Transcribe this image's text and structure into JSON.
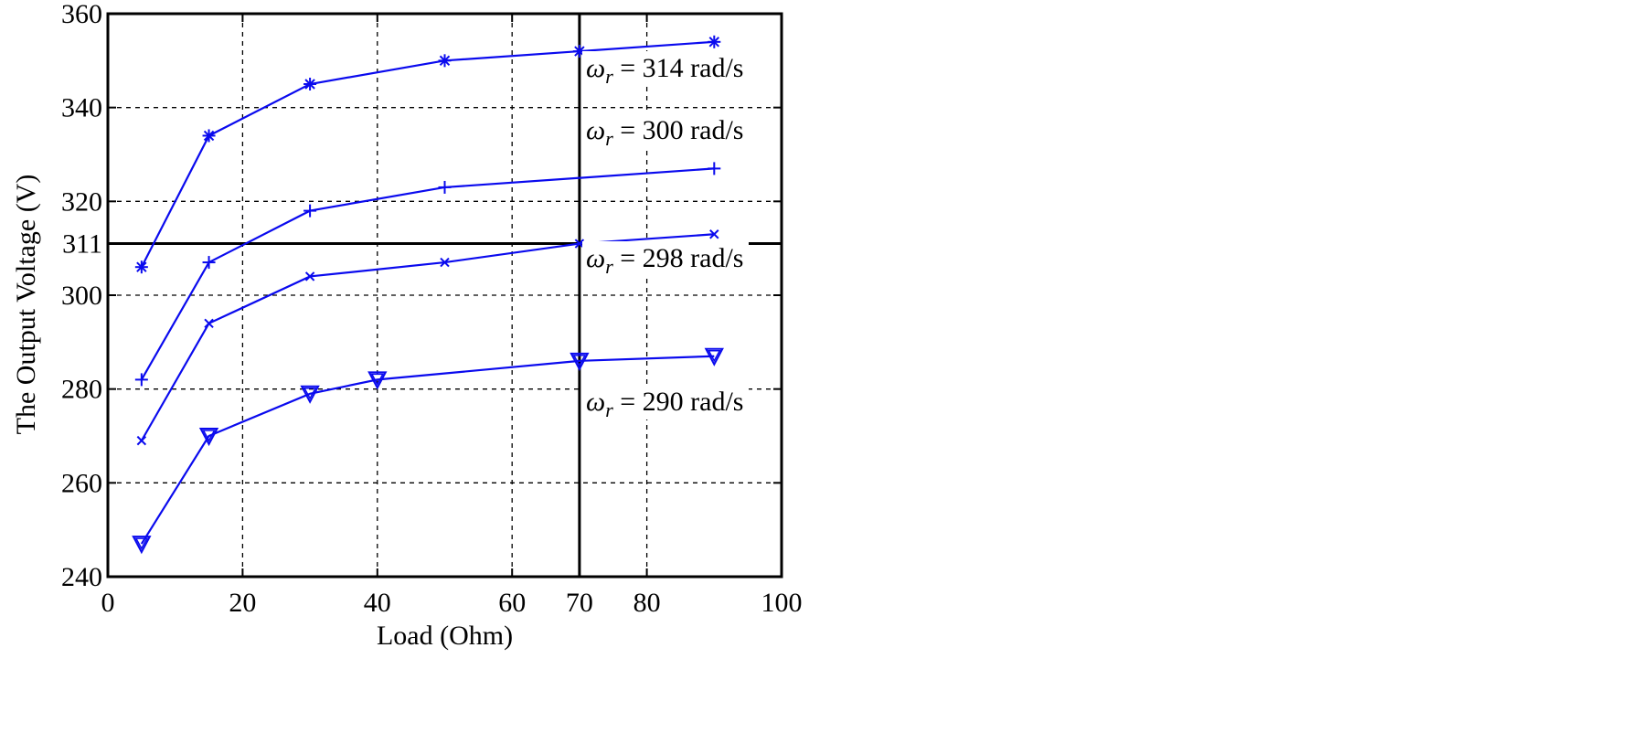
{
  "chart_data": {
    "type": "line",
    "xlabel": "Load (Ohm)",
    "ylabel": "The Output Voltage (V)",
    "xlim": [
      0,
      100
    ],
    "ylim": [
      240,
      360
    ],
    "x_ticks": [
      0,
      20,
      40,
      60,
      70,
      80,
      100
    ],
    "y_ticks": [
      240,
      260,
      280,
      300,
      311,
      320,
      340,
      360
    ],
    "grid": true,
    "reference_lines": {
      "x": 70,
      "y": 311
    },
    "line_color": "#0a0aee",
    "series": [
      {
        "name": "ωr = 314 rad/s",
        "marker": "plus-asterisk",
        "x": [
          5,
          15,
          30,
          50,
          70,
          90
        ],
        "y": [
          306,
          334,
          345,
          350,
          352,
          354
        ]
      },
      {
        "name": "ωr = 300 rad/s",
        "marker": "plus",
        "x": [
          5,
          15,
          30,
          50,
          90
        ],
        "y": [
          282,
          307,
          318,
          323,
          327
        ]
      },
      {
        "name": "ωr = 298 rad/s",
        "marker": "x",
        "x": [
          5,
          15,
          30,
          50,
          70,
          90
        ],
        "y": [
          269,
          294,
          304,
          307,
          311,
          313
        ]
      },
      {
        "name": "ωr = 290 rad/s",
        "marker": "triangle-down",
        "x": [
          5,
          15,
          30,
          40,
          70,
          90
        ],
        "y": [
          247,
          270,
          279,
          282,
          286,
          287
        ]
      }
    ],
    "annotations": [
      {
        "symbol": "ω",
        "sub": "r",
        "text": " = 314 rad/s"
      },
      {
        "symbol": "ω",
        "sub": "r",
        "text": " = 300 rad/s"
      },
      {
        "symbol": "ω",
        "sub": "r",
        "text": " = 298 rad/s"
      },
      {
        "symbol": "ω",
        "sub": "r",
        "text": " = 290 rad/s"
      }
    ]
  }
}
